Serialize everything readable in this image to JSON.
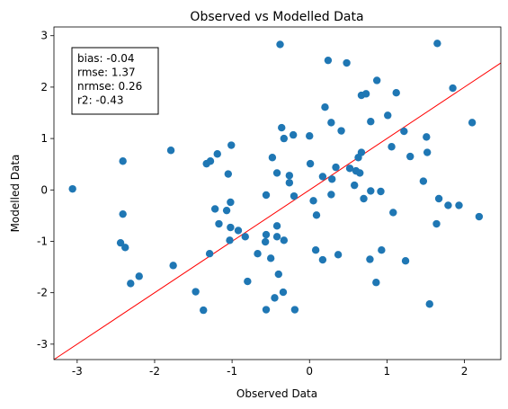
{
  "chart_data": {
    "type": "scatter",
    "title": "Observed vs Modelled Data",
    "x_label": "Observed Data",
    "y_label": "Modelled Data",
    "annotation": [
      "bias: -0.04",
      "rmse: 1.37",
      "nrmse: 0.26",
      "r2: -0.43"
    ],
    "color": "#1f77b4",
    "grid": false,
    "xlim": [
      -3.3,
      2.47
    ],
    "ylim": [
      -3.3,
      3.17
    ],
    "xticks": [
      -3,
      -2,
      -1,
      0,
      1,
      2
    ],
    "yticks": [
      -3,
      -2,
      -1,
      0,
      1,
      2,
      3
    ],
    "x": [
      -3.06,
      -2.41,
      -2.41,
      -2.44,
      -2.38,
      -2.31,
      -2.2,
      -1.79,
      -1.76,
      -1.47,
      -1.37,
      -1.33,
      -1.28,
      -1.19,
      -1.29,
      -1.22,
      -1.17,
      -1.07,
      -1.03,
      -1.05,
      -1.01,
      -1.02,
      -1.02,
      -0.92,
      -0.83,
      -0.8,
      -0.67,
      -0.56,
      -0.57,
      -0.56,
      -0.56,
      -0.5,
      -0.48,
      -0.45,
      -0.42,
      -0.42,
      -0.42,
      -0.4,
      -0.38,
      -0.36,
      -0.34,
      -0.33,
      -0.33,
      -0.26,
      -0.26,
      -0.21,
      -0.2,
      -0.19,
      0.0,
      0.01,
      0.05,
      0.09,
      0.08,
      0.17,
      0.17,
      0.2,
      0.24,
      0.28,
      0.28,
      0.29,
      0.34,
      0.37,
      0.41,
      0.48,
      0.52,
      0.58,
      0.6,
      0.63,
      0.65,
      0.67,
      0.67,
      0.7,
      0.73,
      0.78,
      0.79,
      0.79,
      0.86,
      0.87,
      0.92,
      0.93,
      1.01,
      1.06,
      1.08,
      1.12,
      1.22,
      1.24,
      1.3,
      1.47,
      1.51,
      1.52,
      1.55,
      1.64,
      1.65,
      1.67,
      1.79,
      1.85,
      1.93,
      2.1,
      2.19
    ],
    "y": [
      0.02,
      0.56,
      -0.47,
      -1.03,
      -1.12,
      -1.82,
      -1.68,
      0.77,
      -1.47,
      -1.98,
      -2.34,
      0.51,
      0.56,
      0.7,
      -1.24,
      -0.37,
      -0.66,
      -0.4,
      -0.98,
      0.31,
      0.87,
      -0.24,
      -0.73,
      -0.79,
      -0.91,
      -1.78,
      -1.24,
      -0.87,
      -1.01,
      -0.1,
      -2.33,
      -1.33,
      0.63,
      -2.1,
      0.33,
      -0.7,
      -0.91,
      -1.64,
      2.83,
      1.21,
      -1.99,
      1.0,
      -0.98,
      0.28,
      0.14,
      1.07,
      -0.12,
      -2.33,
      1.05,
      0.51,
      -0.21,
      -0.49,
      -1.17,
      0.26,
      -1.36,
      1.61,
      2.52,
      1.31,
      -0.09,
      0.21,
      0.44,
      -1.26,
      1.15,
      2.47,
      0.42,
      0.09,
      0.37,
      0.63,
      0.33,
      1.84,
      0.73,
      -0.17,
      1.87,
      -1.35,
      1.33,
      -0.02,
      -1.8,
      2.13,
      -0.03,
      -1.17,
      1.45,
      0.84,
      -0.44,
      1.89,
      1.14,
      -1.38,
      0.65,
      0.17,
      1.03,
      0.73,
      -2.22,
      -0.66,
      2.85,
      -0.17,
      -0.3,
      1.98,
      -0.3,
      1.31,
      -0.52
    ]
  }
}
